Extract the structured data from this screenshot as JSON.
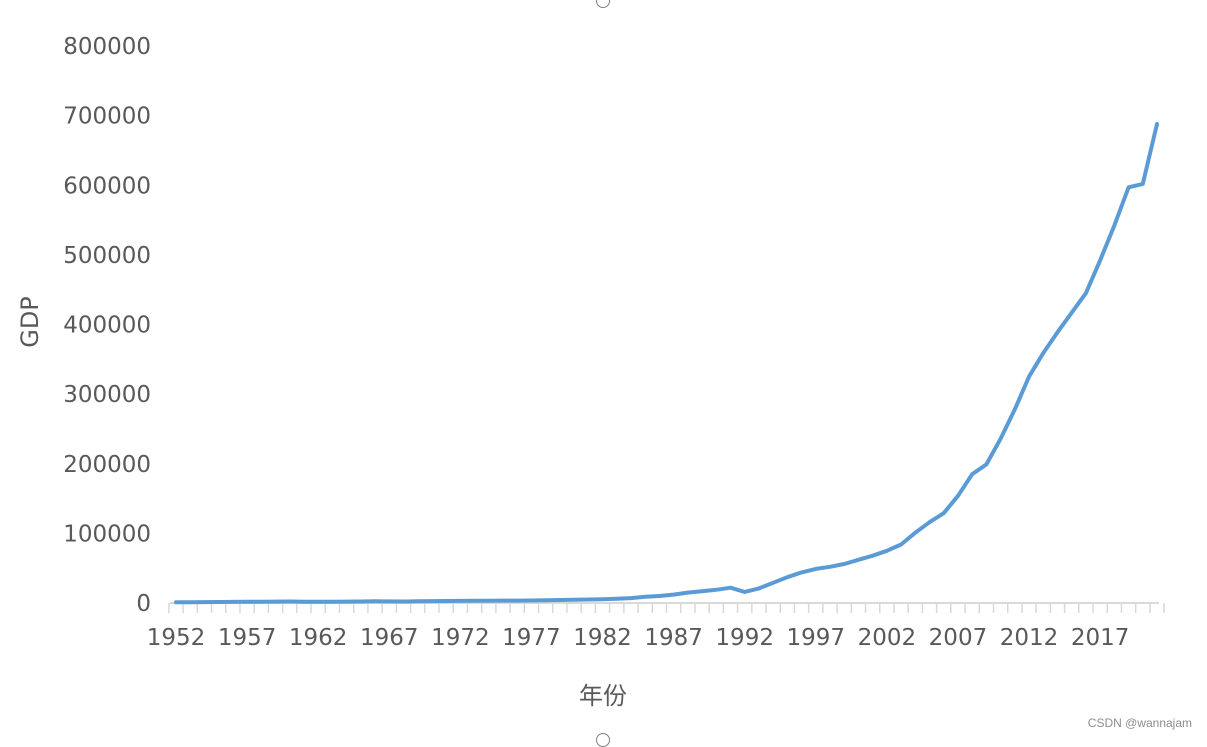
{
  "watermark": "CSDN @wannajam",
  "colors": {
    "line": "#5b9bd5",
    "axis": "#d9d9d9",
    "text": "#595959"
  },
  "chart_data": {
    "type": "line",
    "title": "",
    "xlabel": "年份",
    "ylabel": "GDP",
    "ylim": [
      0,
      800000
    ],
    "y_ticks": [
      0,
      100000,
      200000,
      300000,
      400000,
      500000,
      600000,
      700000,
      800000
    ],
    "x_tick_labels": [
      "1952",
      "1957",
      "1962",
      "1967",
      "1972",
      "1977",
      "1982",
      "1987",
      "1992",
      "1997",
      "2002",
      "2007",
      "2012",
      "2017"
    ],
    "grid": false,
    "legend": "none",
    "series": [
      {
        "x": [
          1952,
          1953,
          1954,
          1955,
          1956,
          1957,
          1958,
          1959,
          1960,
          1961,
          1962,
          1963,
          1964,
          1965,
          1966,
          1967,
          1968,
          1969,
          1970,
          1971,
          1972,
          1973,
          1974,
          1975,
          1976,
          1977,
          1978,
          1979,
          1980,
          1981,
          1982,
          1983,
          1984,
          1985,
          1986,
          1987,
          1988,
          1989,
          1990,
          1991,
          1992,
          1993,
          1994,
          1995,
          1996,
          1997,
          1998,
          1999,
          2000,
          2001,
          2002,
          2003,
          2004,
          2005,
          2006,
          2007,
          2008,
          2009,
          2010,
          2011,
          2012,
          2013,
          2014,
          2015,
          2016,
          2017,
          2018,
          2019,
          2020,
          2021
        ],
        "values": [
          1000,
          1200,
          1300,
          1500,
          1600,
          1700,
          1900,
          2000,
          2100,
          1800,
          1700,
          1800,
          2000,
          2200,
          2400,
          2300,
          2200,
          2400,
          2700,
          2900,
          3000,
          3200,
          3300,
          3500,
          3400,
          3600,
          4000,
          4300,
          4700,
          5000,
          5300,
          6000,
          7000,
          9000,
          10000,
          12000,
          15000,
          17000,
          19000,
          22000,
          16000,
          21000,
          29000,
          37000,
          44000,
          49000,
          52000,
          56000,
          62000,
          68000,
          75000,
          84000,
          101000,
          116000,
          129000,
          154000,
          185000,
          199000,
          236000,
          278000,
          325000,
          359000,
          389000,
          417000,
          445000,
          492000,
          542000,
          597000,
          602000,
          688000
        ]
      }
    ]
  }
}
